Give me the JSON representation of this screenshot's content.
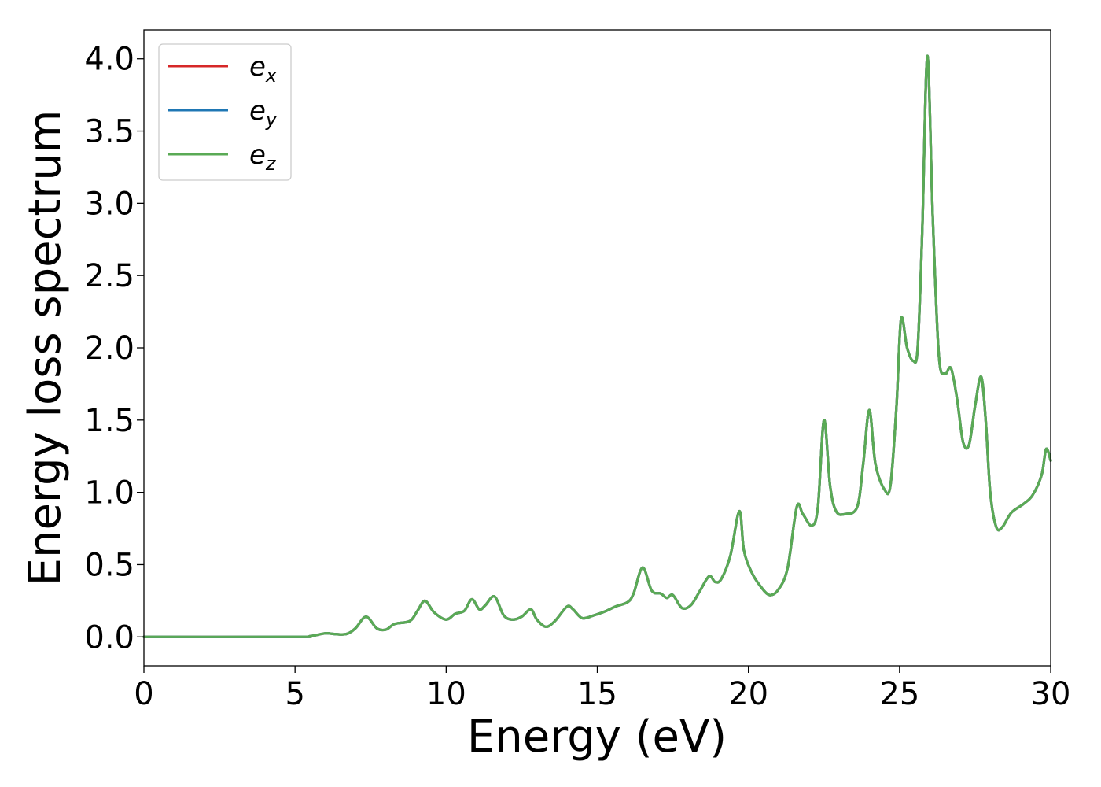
{
  "chart_data": {
    "type": "line",
    "title": "",
    "xlabel": "Energy (eV)",
    "ylabel": "Energy loss spectrum",
    "xlim": [
      0,
      30
    ],
    "ylim": [
      -0.2,
      4.2
    ],
    "xticks": [
      "0",
      "5",
      "10",
      "15",
      "20",
      "25",
      "30"
    ],
    "yticks": [
      "0.0",
      "0.5",
      "1.0",
      "1.5",
      "2.0",
      "2.5",
      "3.0",
      "3.5",
      "4.0"
    ],
    "grid": false,
    "legend_position": "top-left",
    "series": [
      {
        "name": "e_x",
        "legend_main": "e",
        "legend_sub": "x",
        "color": "#d62728",
        "points": [
          [
            0,
            0
          ],
          [
            5,
            0
          ],
          [
            5.5,
            0.005
          ],
          [
            6.0,
            0.025
          ],
          [
            6.3,
            0.02
          ],
          [
            6.7,
            0.02
          ],
          [
            7.0,
            0.06
          ],
          [
            7.35,
            0.14
          ],
          [
            7.7,
            0.06
          ],
          [
            8.0,
            0.05
          ],
          [
            8.3,
            0.09
          ],
          [
            8.8,
            0.11
          ],
          [
            9.05,
            0.18
          ],
          [
            9.3,
            0.25
          ],
          [
            9.6,
            0.17
          ],
          [
            10.0,
            0.12
          ],
          [
            10.3,
            0.16
          ],
          [
            10.6,
            0.18
          ],
          [
            10.85,
            0.26
          ],
          [
            11.1,
            0.19
          ],
          [
            11.3,
            0.22
          ],
          [
            11.6,
            0.28
          ],
          [
            11.9,
            0.15
          ],
          [
            12.2,
            0.12
          ],
          [
            12.5,
            0.14
          ],
          [
            12.8,
            0.19
          ],
          [
            13.0,
            0.12
          ],
          [
            13.3,
            0.07
          ],
          [
            13.6,
            0.11
          ],
          [
            14.0,
            0.21
          ],
          [
            14.2,
            0.19
          ],
          [
            14.5,
            0.13
          ],
          [
            14.9,
            0.15
          ],
          [
            15.3,
            0.18
          ],
          [
            15.6,
            0.21
          ],
          [
            16.0,
            0.24
          ],
          [
            16.2,
            0.3
          ],
          [
            16.5,
            0.48
          ],
          [
            16.8,
            0.32
          ],
          [
            17.1,
            0.3
          ],
          [
            17.3,
            0.27
          ],
          [
            17.5,
            0.29
          ],
          [
            17.8,
            0.2
          ],
          [
            18.1,
            0.22
          ],
          [
            18.4,
            0.32
          ],
          [
            18.7,
            0.42
          ],
          [
            18.9,
            0.38
          ],
          [
            19.1,
            0.4
          ],
          [
            19.4,
            0.56
          ],
          [
            19.7,
            0.87
          ],
          [
            19.85,
            0.6
          ],
          [
            20.1,
            0.45
          ],
          [
            20.4,
            0.35
          ],
          [
            20.7,
            0.29
          ],
          [
            21.0,
            0.33
          ],
          [
            21.3,
            0.48
          ],
          [
            21.6,
            0.9
          ],
          [
            21.8,
            0.85
          ],
          [
            22.1,
            0.77
          ],
          [
            22.3,
            0.9
          ],
          [
            22.5,
            1.5
          ],
          [
            22.7,
            1.05
          ],
          [
            22.9,
            0.87
          ],
          [
            23.2,
            0.85
          ],
          [
            23.6,
            0.9
          ],
          [
            23.8,
            1.2
          ],
          [
            24.0,
            1.57
          ],
          [
            24.2,
            1.2
          ],
          [
            24.5,
            1.02
          ],
          [
            24.7,
            1.05
          ],
          [
            24.9,
            1.6
          ],
          [
            25.05,
            2.2
          ],
          [
            25.25,
            2.0
          ],
          [
            25.45,
            1.91
          ],
          [
            25.6,
            2.0
          ],
          [
            25.75,
            2.8
          ],
          [
            25.92,
            4.02
          ],
          [
            26.1,
            2.9
          ],
          [
            26.3,
            1.95
          ],
          [
            26.5,
            1.82
          ],
          [
            26.7,
            1.86
          ],
          [
            26.9,
            1.65
          ],
          [
            27.1,
            1.35
          ],
          [
            27.3,
            1.33
          ],
          [
            27.5,
            1.6
          ],
          [
            27.7,
            1.8
          ],
          [
            27.85,
            1.5
          ],
          [
            28.0,
            1.0
          ],
          [
            28.2,
            0.76
          ],
          [
            28.4,
            0.76
          ],
          [
            28.7,
            0.86
          ],
          [
            29.1,
            0.92
          ],
          [
            29.4,
            0.98
          ],
          [
            29.7,
            1.12
          ],
          [
            29.85,
            1.3
          ],
          [
            30.0,
            1.22
          ]
        ]
      },
      {
        "name": "e_y",
        "legend_main": "e",
        "legend_sub": "y",
        "color": "#1f77b4",
        "points": [
          [
            0,
            0
          ],
          [
            5,
            0
          ],
          [
            5.5,
            0.005
          ],
          [
            6.0,
            0.025
          ],
          [
            6.3,
            0.02
          ],
          [
            6.7,
            0.02
          ],
          [
            7.0,
            0.06
          ],
          [
            7.35,
            0.14
          ],
          [
            7.7,
            0.06
          ],
          [
            8.0,
            0.05
          ],
          [
            8.3,
            0.09
          ],
          [
            8.8,
            0.11
          ],
          [
            9.05,
            0.18
          ],
          [
            9.3,
            0.25
          ],
          [
            9.6,
            0.17
          ],
          [
            10.0,
            0.12
          ],
          [
            10.3,
            0.16
          ],
          [
            10.6,
            0.18
          ],
          [
            10.85,
            0.26
          ],
          [
            11.1,
            0.19
          ],
          [
            11.3,
            0.22
          ],
          [
            11.6,
            0.28
          ],
          [
            11.9,
            0.15
          ],
          [
            12.2,
            0.12
          ],
          [
            12.5,
            0.14
          ],
          [
            12.8,
            0.19
          ],
          [
            13.0,
            0.12
          ],
          [
            13.3,
            0.07
          ],
          [
            13.6,
            0.11
          ],
          [
            14.0,
            0.21
          ],
          [
            14.2,
            0.19
          ],
          [
            14.5,
            0.13
          ],
          [
            14.9,
            0.15
          ],
          [
            15.3,
            0.18
          ],
          [
            15.6,
            0.21
          ],
          [
            16.0,
            0.24
          ],
          [
            16.2,
            0.3
          ],
          [
            16.5,
            0.48
          ],
          [
            16.8,
            0.32
          ],
          [
            17.1,
            0.3
          ],
          [
            17.3,
            0.27
          ],
          [
            17.5,
            0.29
          ],
          [
            17.8,
            0.2
          ],
          [
            18.1,
            0.22
          ],
          [
            18.4,
            0.32
          ],
          [
            18.7,
            0.42
          ],
          [
            18.9,
            0.38
          ],
          [
            19.1,
            0.4
          ],
          [
            19.4,
            0.56
          ],
          [
            19.7,
            0.87
          ],
          [
            19.85,
            0.6
          ],
          [
            20.1,
            0.45
          ],
          [
            20.4,
            0.35
          ],
          [
            20.7,
            0.29
          ],
          [
            21.0,
            0.33
          ],
          [
            21.3,
            0.48
          ],
          [
            21.6,
            0.9
          ],
          [
            21.8,
            0.85
          ],
          [
            22.1,
            0.77
          ],
          [
            22.3,
            0.9
          ],
          [
            22.5,
            1.5
          ],
          [
            22.7,
            1.05
          ],
          [
            22.9,
            0.87
          ],
          [
            23.2,
            0.85
          ],
          [
            23.6,
            0.9
          ],
          [
            23.8,
            1.2
          ],
          [
            24.0,
            1.57
          ],
          [
            24.2,
            1.2
          ],
          [
            24.5,
            1.02
          ],
          [
            24.7,
            1.05
          ],
          [
            24.9,
            1.6
          ],
          [
            25.05,
            2.2
          ],
          [
            25.25,
            2.0
          ],
          [
            25.45,
            1.91
          ],
          [
            25.6,
            2.0
          ],
          [
            25.75,
            2.8
          ],
          [
            25.92,
            4.02
          ],
          [
            26.1,
            2.9
          ],
          [
            26.3,
            1.95
          ],
          [
            26.5,
            1.82
          ],
          [
            26.7,
            1.86
          ],
          [
            26.9,
            1.65
          ],
          [
            27.1,
            1.35
          ],
          [
            27.3,
            1.33
          ],
          [
            27.5,
            1.6
          ],
          [
            27.7,
            1.8
          ],
          [
            27.85,
            1.5
          ],
          [
            28.0,
            1.0
          ],
          [
            28.2,
            0.76
          ],
          [
            28.4,
            0.76
          ],
          [
            28.7,
            0.86
          ],
          [
            29.1,
            0.92
          ],
          [
            29.4,
            0.98
          ],
          [
            29.7,
            1.12
          ],
          [
            29.85,
            1.3
          ],
          [
            30.0,
            1.22
          ]
        ]
      },
      {
        "name": "e_z",
        "legend_main": "e",
        "legend_sub": "z",
        "color": "#5aaa55",
        "points": [
          [
            0,
            0
          ],
          [
            5,
            0
          ],
          [
            5.5,
            0.005
          ],
          [
            6.0,
            0.025
          ],
          [
            6.3,
            0.02
          ],
          [
            6.7,
            0.02
          ],
          [
            7.0,
            0.06
          ],
          [
            7.35,
            0.14
          ],
          [
            7.7,
            0.06
          ],
          [
            8.0,
            0.05
          ],
          [
            8.3,
            0.09
          ],
          [
            8.8,
            0.11
          ],
          [
            9.05,
            0.18
          ],
          [
            9.3,
            0.25
          ],
          [
            9.6,
            0.17
          ],
          [
            10.0,
            0.12
          ],
          [
            10.3,
            0.16
          ],
          [
            10.6,
            0.18
          ],
          [
            10.85,
            0.26
          ],
          [
            11.1,
            0.19
          ],
          [
            11.3,
            0.22
          ],
          [
            11.6,
            0.28
          ],
          [
            11.9,
            0.15
          ],
          [
            12.2,
            0.12
          ],
          [
            12.5,
            0.14
          ],
          [
            12.8,
            0.19
          ],
          [
            13.0,
            0.12
          ],
          [
            13.3,
            0.07
          ],
          [
            13.6,
            0.11
          ],
          [
            14.0,
            0.21
          ],
          [
            14.2,
            0.19
          ],
          [
            14.5,
            0.13
          ],
          [
            14.9,
            0.15
          ],
          [
            15.3,
            0.18
          ],
          [
            15.6,
            0.21
          ],
          [
            16.0,
            0.24
          ],
          [
            16.2,
            0.3
          ],
          [
            16.5,
            0.48
          ],
          [
            16.8,
            0.32
          ],
          [
            17.1,
            0.3
          ],
          [
            17.3,
            0.27
          ],
          [
            17.5,
            0.29
          ],
          [
            17.8,
            0.2
          ],
          [
            18.1,
            0.22
          ],
          [
            18.4,
            0.32
          ],
          [
            18.7,
            0.42
          ],
          [
            18.9,
            0.38
          ],
          [
            19.1,
            0.4
          ],
          [
            19.4,
            0.56
          ],
          [
            19.7,
            0.87
          ],
          [
            19.85,
            0.6
          ],
          [
            20.1,
            0.45
          ],
          [
            20.4,
            0.35
          ],
          [
            20.7,
            0.29
          ],
          [
            21.0,
            0.33
          ],
          [
            21.3,
            0.48
          ],
          [
            21.6,
            0.9
          ],
          [
            21.8,
            0.85
          ],
          [
            22.1,
            0.77
          ],
          [
            22.3,
            0.9
          ],
          [
            22.5,
            1.5
          ],
          [
            22.7,
            1.05
          ],
          [
            22.9,
            0.87
          ],
          [
            23.2,
            0.85
          ],
          [
            23.6,
            0.9
          ],
          [
            23.8,
            1.2
          ],
          [
            24.0,
            1.57
          ],
          [
            24.2,
            1.2
          ],
          [
            24.5,
            1.02
          ],
          [
            24.7,
            1.05
          ],
          [
            24.9,
            1.6
          ],
          [
            25.05,
            2.2
          ],
          [
            25.25,
            2.0
          ],
          [
            25.45,
            1.91
          ],
          [
            25.6,
            2.0
          ],
          [
            25.75,
            2.8
          ],
          [
            25.92,
            4.02
          ],
          [
            26.1,
            2.9
          ],
          [
            26.3,
            1.95
          ],
          [
            26.5,
            1.82
          ],
          [
            26.7,
            1.86
          ],
          [
            26.9,
            1.65
          ],
          [
            27.1,
            1.35
          ],
          [
            27.3,
            1.33
          ],
          [
            27.5,
            1.6
          ],
          [
            27.7,
            1.8
          ],
          [
            27.85,
            1.5
          ],
          [
            28.0,
            1.0
          ],
          [
            28.2,
            0.76
          ],
          [
            28.4,
            0.76
          ],
          [
            28.7,
            0.86
          ],
          [
            29.1,
            0.92
          ],
          [
            29.4,
            0.98
          ],
          [
            29.7,
            1.12
          ],
          [
            29.85,
            1.3
          ],
          [
            30.0,
            1.22
          ]
        ]
      }
    ]
  }
}
